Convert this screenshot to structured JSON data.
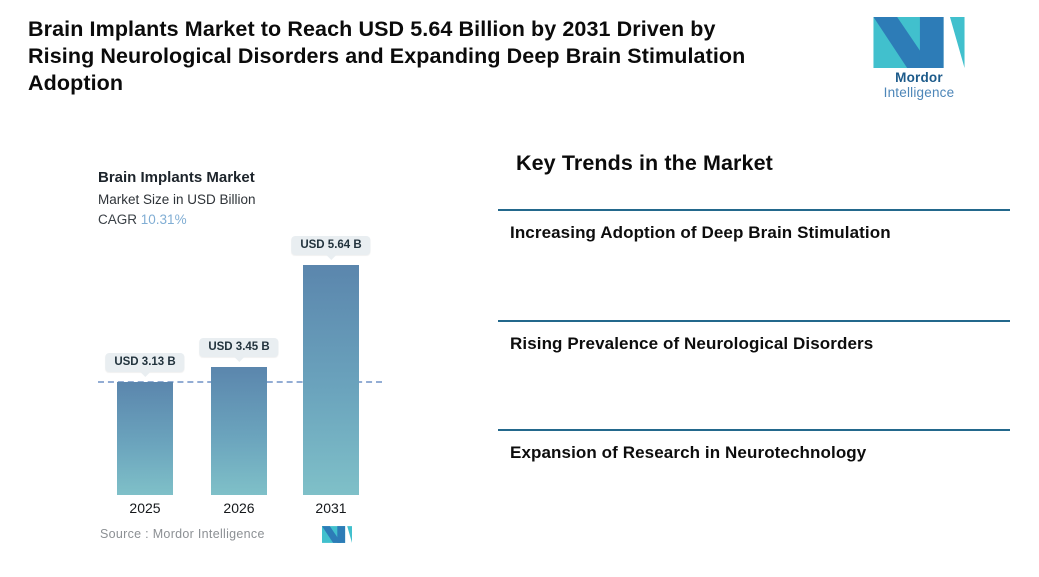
{
  "header": {
    "title_lines": [
      "Brain Implants Market to Reach USD 5.64 Billion by 2031 Driven by",
      "Rising Neurological Disorders and Expanding Deep Brain Stimulation",
      "Adoption"
    ],
    "logo": {
      "word_bold": "Mordor",
      "word_light": "Intelligence"
    }
  },
  "chart": {
    "title": "Brain Implants Market",
    "subtitle": "Market Size in USD Billion",
    "cagr_label": "CAGR",
    "cagr_value": "10.31%",
    "source": "Source :  Mordor Intelligence"
  },
  "chart_data": {
    "type": "bar",
    "categories": [
      "2025",
      "2026",
      "2031"
    ],
    "values": [
      3.13,
      3.45,
      5.64
    ],
    "bar_labels": [
      "USD 3.13 B",
      "USD 3.45 B",
      "USD 5.64 B"
    ],
    "title": "Brain Implants Market",
    "subtitle": "Market Size in USD Billion",
    "cagr": "10.31%",
    "reference_line": 3.13,
    "ylim": [
      0,
      6
    ],
    "grid": false,
    "legend": false,
    "source": "Mordor Intelligence"
  },
  "trends": {
    "heading": "Key Trends in the Market",
    "items": [
      {
        "label": "Increasing Adoption of Deep Brain Stimulation"
      },
      {
        "label": "Rising Prevalence of Neurological Disorders"
      },
      {
        "label": "Expansion of Research in Neurotechnology"
      }
    ]
  },
  "colors": {
    "bar_gradient_top": "#5b86ad",
    "bar_gradient_bottom": "#7fc0c8",
    "dashed_reference_line": "#93add4",
    "trend_divider": "#23688c",
    "cagr_accent": "#81aed4",
    "label_pill_bg": "#e9eef1",
    "logo_teal": "#41c0cd",
    "logo_blue": "#2d7cb7"
  }
}
